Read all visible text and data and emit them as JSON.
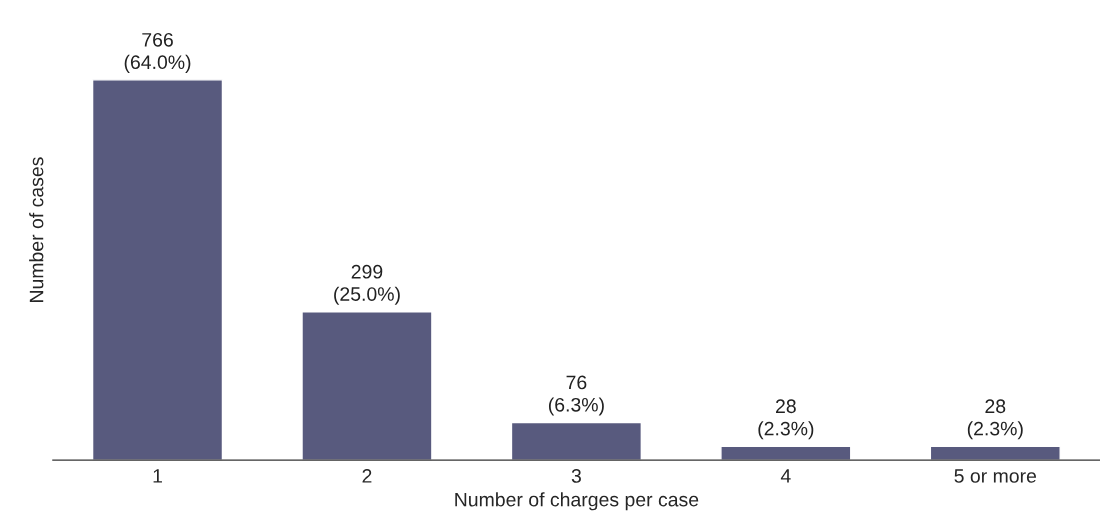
{
  "chart_data": {
    "type": "bar",
    "xlabel": "Number of charges per case",
    "ylabel": "Number of cases",
    "categories": [
      "1",
      "2",
      "3",
      "4",
      "5 or more"
    ],
    "values": [
      766,
      299,
      76,
      28,
      28
    ],
    "value_labels": [
      "766\n(64.0%)",
      "299\n(25.0%)",
      "76\n(6.3%)",
      "28\n(2.3%)",
      "28\n(2.3%)"
    ],
    "color": "#585a7e",
    "grid": false
  }
}
